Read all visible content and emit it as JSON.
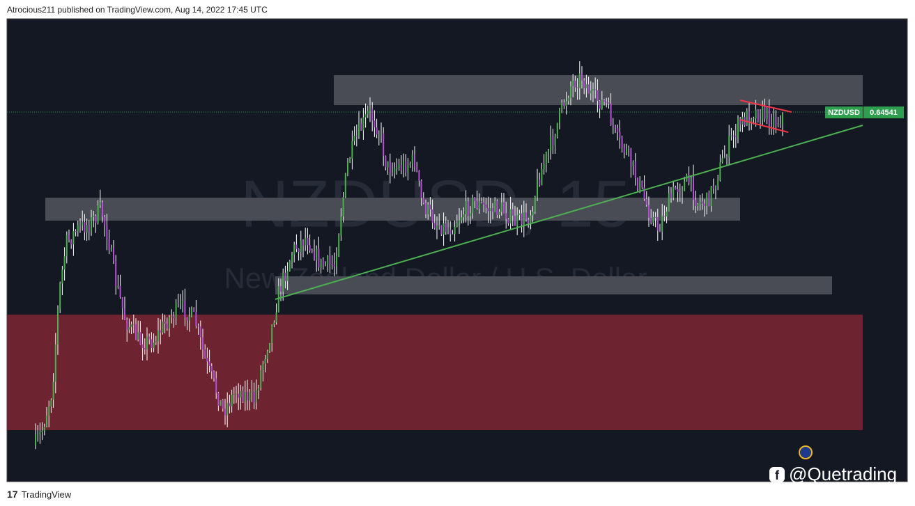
{
  "header": {
    "text": "Atrocious211 published on TradingView.com, Aug 14, 2022 17:45 UTC"
  },
  "watermark": {
    "symbol": "NZDUSD, 15",
    "description": "New Zealand Dollar / U.S. Dollar"
  },
  "price_label": {
    "symbol": "NZDUSD",
    "price": "0.64541"
  },
  "footer": {
    "brand": "TradingView",
    "handle": "@Quetrading"
  }
}
